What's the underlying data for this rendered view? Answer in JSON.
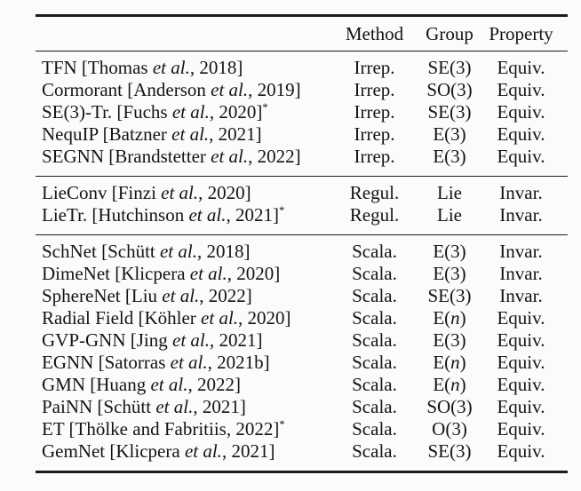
{
  "colors": {
    "background": "#fbfbf9",
    "text": "#141414",
    "rule": "#1b1b1b"
  },
  "table": {
    "headers": {
      "name": "",
      "method": "Method",
      "group": "Group",
      "property": "Property"
    },
    "groups": [
      {
        "rows": [
          {
            "n1": "TFN [Thomas ",
            "n2": "et al.",
            "n3": ", 2018]",
            "n4": "",
            "m": "Irrep.",
            "g1": "SE(3)",
            "g2": "",
            "g3": "",
            "p": "Equiv."
          },
          {
            "n1": "Cormorant [Anderson ",
            "n2": "et al.",
            "n3": ", 2019]",
            "n4": "",
            "m": "Irrep.",
            "g1": "SO(3)",
            "g2": "",
            "g3": "",
            "p": "Equiv."
          },
          {
            "n1": "SE(3)-Tr. [Fuchs ",
            "n2": "et al.",
            "n3": ", 2020]",
            "n4": "*",
            "m": "Irrep.",
            "g1": "SE(3)",
            "g2": "",
            "g3": "",
            "p": "Equiv."
          },
          {
            "n1": "NequIP [Batzner ",
            "n2": "et al.",
            "n3": ", 2021]",
            "n4": "",
            "m": "Irrep.",
            "g1": "E(3)",
            "g2": "",
            "g3": "",
            "p": "Equiv."
          },
          {
            "n1": "SEGNN [Brandstetter ",
            "n2": "et al.",
            "n3": ", 2022]",
            "n4": "",
            "m": "Irrep.",
            "g1": "E(3)",
            "g2": "",
            "g3": "",
            "p": "Equiv."
          }
        ]
      },
      {
        "rows": [
          {
            "n1": "LieConv [Finzi ",
            "n2": "et al.",
            "n3": ", 2020]",
            "n4": "",
            "m": "Regul.",
            "g1": "Lie",
            "g2": "",
            "g3": "",
            "p": "Invar."
          },
          {
            "n1": "LieTr. [Hutchinson ",
            "n2": "et al.",
            "n3": ", 2021]",
            "n4": "*",
            "m": "Regul.",
            "g1": "Lie",
            "g2": "",
            "g3": "",
            "p": "Invar."
          }
        ]
      },
      {
        "rows": [
          {
            "n1": "SchNet [Schütt ",
            "n2": "et al.",
            "n3": ", 2018]",
            "n4": "",
            "m": "Scala.",
            "g1": "E(3)",
            "g2": "",
            "g3": "",
            "p": "Invar."
          },
          {
            "n1": "DimeNet [Klicpera ",
            "n2": "et al.",
            "n3": ", 2020]",
            "n4": "",
            "m": "Scala.",
            "g1": "E(3)",
            "g2": "",
            "g3": "",
            "p": "Invar."
          },
          {
            "n1": "SphereNet [Liu ",
            "n2": "et al.",
            "n3": ", 2022]",
            "n4": "",
            "m": "Scala.",
            "g1": "SE(3)",
            "g2": "",
            "g3": "",
            "p": "Invar."
          },
          {
            "n1": "Radial Field [Köhler ",
            "n2": "et al.",
            "n3": ", 2020]",
            "n4": "",
            "m": "Scala.",
            "g1": "E(",
            "g2": "n",
            "g3": ")",
            "p": "Equiv."
          },
          {
            "n1": "GVP-GNN [Jing ",
            "n2": "et al.",
            "n3": ", 2021]",
            "n4": "",
            "m": "Scala.",
            "g1": "E(3)",
            "g2": "",
            "g3": "",
            "p": "Equiv."
          },
          {
            "n1": "EGNN [Satorras ",
            "n2": "et al.",
            "n3": ", 2021b]",
            "n4": "",
            "m": "Scala.",
            "g1": "E(",
            "g2": "n",
            "g3": ")",
            "p": "Equiv."
          },
          {
            "n1": "GMN [Huang ",
            "n2": "et al.",
            "n3": ", 2022]",
            "n4": "",
            "m": "Scala.",
            "g1": "E(",
            "g2": "n",
            "g3": ")",
            "p": "Equiv."
          },
          {
            "n1": "PaiNN [Schütt ",
            "n2": "et al.",
            "n3": ", 2021]",
            "n4": "",
            "m": "Scala.",
            "g1": "SO(3)",
            "g2": "",
            "g3": "",
            "p": "Equiv."
          },
          {
            "n1": "ET [Thölke and Fabritiis, 2022]",
            "n2": "",
            "n3": "",
            "n4": "*",
            "m": "Scala.",
            "g1": "O(3)",
            "g2": "",
            "g3": "",
            "p": "Equiv."
          },
          {
            "n1": "GemNet [Klicpera ",
            "n2": "et al.",
            "n3": ", 2021]",
            "n4": "",
            "m": "Scala.",
            "g1": "SE(3)",
            "g2": "",
            "g3": "",
            "p": "Equiv."
          }
        ]
      }
    ]
  }
}
